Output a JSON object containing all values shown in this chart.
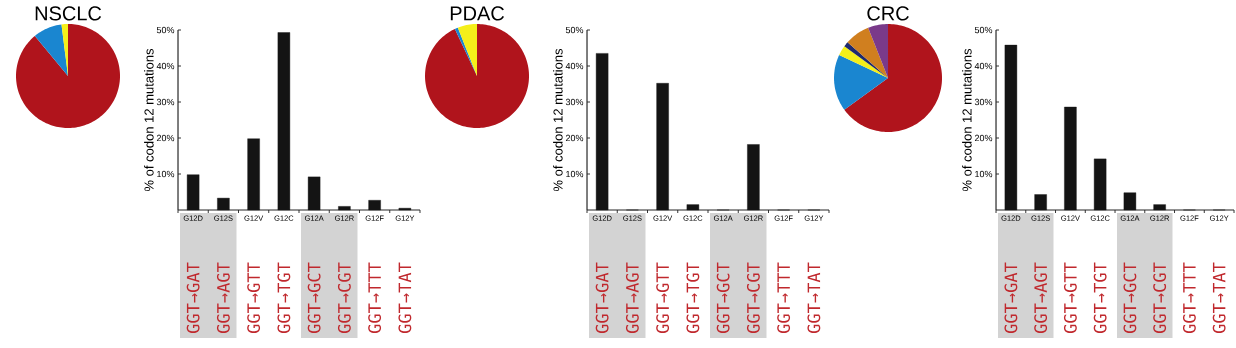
{
  "chart_data": [
    {
      "type": "pie",
      "title": "NSCLC",
      "categories": [
        null,
        null,
        null
      ],
      "values": [
        89,
        9,
        2
      ],
      "colors": [
        "#b0141c",
        "#1a86d0",
        "#f5ef1a"
      ]
    },
    {
      "type": "bar",
      "categories": [
        "G12D",
        "G12S",
        "G12V",
        "G12C",
        "G12A",
        "G12R",
        "G12F",
        "G12Y"
      ],
      "values": [
        9.8,
        3.3,
        19.8,
        49.3,
        9.2,
        1.0,
        2.7,
        0.5
      ],
      "color": "#141414",
      "ylabel": "% of codon 12 mutations",
      "ylim": [
        0,
        50
      ],
      "yticks": [
        {
          "value": 10,
          "label": "10%"
        },
        {
          "value": 20,
          "label": "20%"
        },
        {
          "value": 30,
          "label": "30%"
        },
        {
          "value": 40,
          "label": "40%"
        },
        {
          "value": 50,
          "label": "50%"
        }
      ],
      "annotations": [
        "GGT→GAT",
        "GGT→AGT",
        "GGT→GTT",
        "GGT→TGT",
        "GGT→GCT",
        "GGT→CGT",
        "GGT→TTT",
        "GGT→TAT"
      ]
    },
    {
      "type": "pie",
      "title": "PDAC",
      "categories": [
        null,
        null,
        null
      ],
      "values": [
        93,
        1,
        6
      ],
      "colors": [
        "#b0141c",
        "#1a86d0",
        "#f5ef1a"
      ]
    },
    {
      "type": "bar",
      "categories": [
        "G12D",
        "G12S",
        "G12V",
        "G12C",
        "G12A",
        "G12R",
        "G12F",
        "G12Y"
      ],
      "values": [
        43.5,
        0,
        35.2,
        1.5,
        0,
        18.2,
        0,
        0
      ],
      "color": "#141414",
      "ylabel": "% of codon 12 mutations",
      "ylim": [
        0,
        50
      ],
      "yticks": [
        {
          "value": 10,
          "label": "10%"
        },
        {
          "value": 20,
          "label": "20%"
        },
        {
          "value": 30,
          "label": "30%"
        },
        {
          "value": 40,
          "label": "40%"
        },
        {
          "value": 50,
          "label": "50%"
        }
      ],
      "annotations": [
        "GGT→GAT",
        "GGT→AGT",
        "GGT→GTT",
        "GGT→TGT",
        "GGT→GCT",
        "GGT→CGT",
        "GGT→TTT",
        "GGT→TAT"
      ]
    },
    {
      "type": "pie",
      "title": "CRC",
      "categories": [
        null,
        null,
        null,
        null,
        null,
        null
      ],
      "values": [
        65,
        17,
        3,
        1.5,
        7.5,
        6
      ],
      "colors": [
        "#b0141c",
        "#1a86d0",
        "#f5ef1a",
        "#1f2a6e",
        "#d07f1f",
        "#7a3a8a"
      ]
    },
    {
      "type": "bar",
      "categories": [
        "G12D",
        "G12S",
        "G12V",
        "G12C",
        "G12A",
        "G12R",
        "G12F",
        "G12Y"
      ],
      "values": [
        45.8,
        4.3,
        28.6,
        14.2,
        4.8,
        1.5,
        0,
        0
      ],
      "color": "#141414",
      "ylabel": "% of codon 12 mutations",
      "ylim": [
        0,
        50
      ],
      "yticks": [
        {
          "value": 10,
          "label": "10%"
        },
        {
          "value": 20,
          "label": "20%"
        },
        {
          "value": 30,
          "label": "30%"
        },
        {
          "value": 40,
          "label": "40%"
        },
        {
          "value": 50,
          "label": "50%"
        }
      ],
      "annotations": [
        "GGT→GAT",
        "GGT→AGT",
        "GGT→GTT",
        "GGT→TGT",
        "GGT→GCT",
        "GGT→CGT",
        "GGT→TTT",
        "GGT→TAT"
      ]
    }
  ]
}
